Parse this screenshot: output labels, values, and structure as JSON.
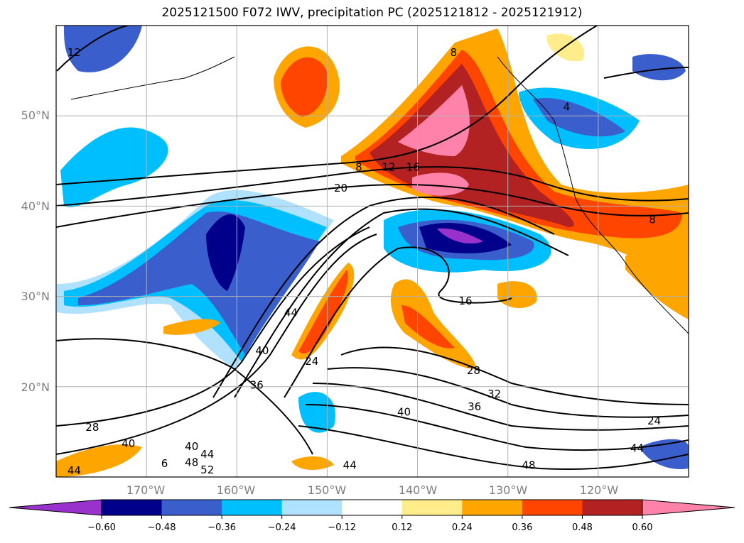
{
  "title": "2025121500 F072 IWV, precipitation PC (2025121812 - 2025121912)",
  "map": {
    "lon_range": [
      -180,
      -110
    ],
    "lat_range": [
      10,
      60
    ],
    "lat_labels": [
      "50°N",
      "40°N",
      "30°N",
      "20°N"
    ],
    "lat_values": [
      50,
      40,
      30,
      20
    ],
    "lon_labels": [
      "170°W",
      "160°W",
      "150°W",
      "140°W",
      "130°W",
      "120°W"
    ],
    "lon_values": [
      -170,
      -160,
      -150,
      -140,
      -130,
      -120
    ],
    "contour_labels": [
      {
        "text": "12",
        "lon": -178,
        "lat": 57
      },
      {
        "text": "8",
        "lon": -146.5,
        "lat": 44.3
      },
      {
        "text": "12",
        "lon": -143.2,
        "lat": 44.3
      },
      {
        "text": "16",
        "lon": -140.5,
        "lat": 44.3
      },
      {
        "text": "20",
        "lon": -148.5,
        "lat": 42
      },
      {
        "text": "8",
        "lon": -136,
        "lat": 57
      },
      {
        "text": "4",
        "lon": -123.5,
        "lat": 51
      },
      {
        "text": "8",
        "lon": -114,
        "lat": 38.5
      },
      {
        "text": "16",
        "lon": -134.7,
        "lat": 29.5
      },
      {
        "text": "44",
        "lon": -154,
        "lat": 28.2
      },
      {
        "text": "40",
        "lon": -157.2,
        "lat": 24
      },
      {
        "text": "24",
        "lon": -151.7,
        "lat": 22.8
      },
      {
        "text": "36",
        "lon": -157.8,
        "lat": 20.2
      },
      {
        "text": "28",
        "lon": -133.8,
        "lat": 21.8
      },
      {
        "text": "32",
        "lon": -131.5,
        "lat": 19.2
      },
      {
        "text": "36",
        "lon": -133.7,
        "lat": 17.8
      },
      {
        "text": "40",
        "lon": -141.5,
        "lat": 17.2
      },
      {
        "text": "24",
        "lon": -113.8,
        "lat": 16.2
      },
      {
        "text": "28",
        "lon": -176,
        "lat": 15.5
      },
      {
        "text": "40",
        "lon": -172,
        "lat": 13.7
      },
      {
        "text": "44",
        "lon": -115.7,
        "lat": 13.2
      },
      {
        "text": "40",
        "lon": -165,
        "lat": 13.4
      },
      {
        "text": "44",
        "lon": -165,
        "lat": 12.5
      },
      {
        "text": "48",
        "lon": -165,
        "lat": 11.6
      },
      {
        "text": "6",
        "lon": -168,
        "lat": 11.5
      },
      {
        "text": "52",
        "lon": -165,
        "lat": 10.8
      },
      {
        "text": "44",
        "lon": -147.5,
        "lat": 11.3
      },
      {
        "text": "48",
        "lon": -127.7,
        "lat": 11.3
      },
      {
        "text": "44",
        "lon": -178,
        "lat": 10.7
      }
    ]
  },
  "colorbar": {
    "ticks": [
      "−0.60",
      "−0.48",
      "−0.36",
      "−0.24",
      "−0.12",
      "0.12",
      "0.24",
      "0.36",
      "0.48",
      "0.60"
    ],
    "colors": [
      "#9932cc",
      "#00008b",
      "#3a5fcd",
      "#00bfff",
      "#b0e2ff",
      "#ffffff",
      "#ffec8b",
      "#ffa500",
      "#ff4500",
      "#b22222",
      "#ff82ab"
    ]
  }
}
